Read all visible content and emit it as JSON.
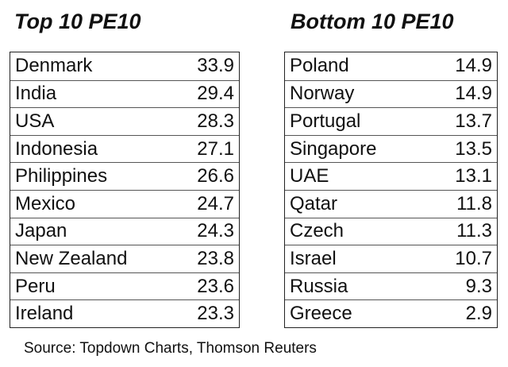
{
  "tables": [
    {
      "title": "Top 10 PE10",
      "rows": [
        [
          "Denmark",
          33.9
        ],
        [
          "India",
          29.4
        ],
        [
          "USA",
          28.3
        ],
        [
          "Indonesia",
          27.1
        ],
        [
          "Philippines",
          26.6
        ],
        [
          "Mexico",
          24.7
        ],
        [
          "Japan",
          24.3
        ],
        [
          "New Zealand",
          23.8
        ],
        [
          "Peru",
          23.6
        ],
        [
          "Ireland",
          23.3
        ]
      ]
    },
    {
      "title": "Bottom 10 PE10",
      "rows": [
        [
          "Poland",
          14.9
        ],
        [
          "Norway",
          14.9
        ],
        [
          "Portugal",
          13.7
        ],
        [
          "Singapore",
          13.5
        ],
        [
          "UAE",
          13.1
        ],
        [
          "Qatar",
          11.8
        ],
        [
          "Czech",
          11.3
        ],
        [
          "Israel",
          10.7
        ],
        [
          "Russia",
          9.3
        ],
        [
          "Greece",
          2.9
        ]
      ]
    }
  ],
  "source": "Source: Topdown Charts, Thomson Reuters"
}
